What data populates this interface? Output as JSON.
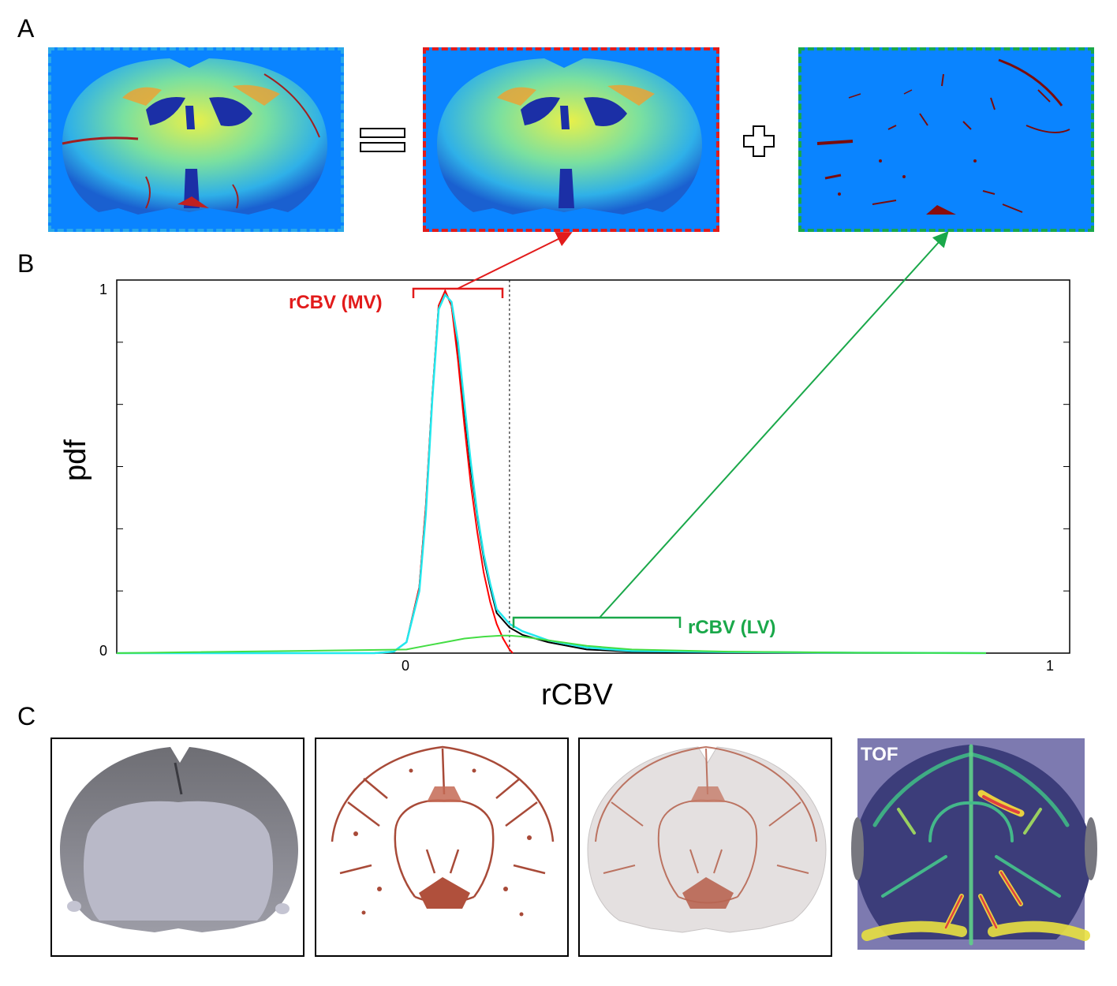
{
  "panels": {
    "a": "A",
    "b": "B",
    "c": "C"
  },
  "chart_data": {
    "type": "line",
    "xlabel": "rCBV",
    "ylabel": "pdf",
    "xlim": [
      -0.45,
      1.03
    ],
    "ylim": [
      0,
      1.02
    ],
    "x_ticks": [
      "0",
      "1"
    ],
    "y_ticks": [
      "0",
      "1"
    ],
    "threshold_x": 0.16,
    "annotations": {
      "mv": "rCBV (MV)",
      "lv": "rCBV (LV)"
    },
    "series": [
      {
        "color": "#000000",
        "x": [
          -0.05,
          -0.02,
          0.0,
          0.02,
          0.03,
          0.04,
          0.05,
          0.06,
          0.07,
          0.08,
          0.09,
          0.1,
          0.11,
          0.12,
          0.13,
          0.14,
          0.16,
          0.18,
          0.22,
          0.28,
          0.35,
          0.5,
          0.7,
          0.9
        ],
        "y": [
          0,
          0.004,
          0.03,
          0.18,
          0.4,
          0.7,
          0.95,
          0.99,
          0.95,
          0.82,
          0.66,
          0.5,
          0.37,
          0.26,
          0.18,
          0.11,
          0.07,
          0.05,
          0.03,
          0.01,
          0.004,
          0.002,
          0.001,
          0
        ]
      },
      {
        "color": "#ff0000",
        "x": [
          -0.05,
          -0.02,
          0.0,
          0.02,
          0.03,
          0.04,
          0.05,
          0.06,
          0.07,
          0.08,
          0.09,
          0.1,
          0.11,
          0.12,
          0.13,
          0.14,
          0.15,
          0.16,
          0.165
        ],
        "y": [
          0,
          0.004,
          0.03,
          0.18,
          0.4,
          0.7,
          0.95,
          0.99,
          0.95,
          0.8,
          0.62,
          0.46,
          0.33,
          0.22,
          0.14,
          0.08,
          0.04,
          0.01,
          0
        ]
      },
      {
        "color": "#22e8ee",
        "x": [
          -0.05,
          -0.02,
          0.0,
          0.02,
          0.03,
          0.04,
          0.05,
          0.06,
          0.07,
          0.08,
          0.09,
          0.1,
          0.11,
          0.12,
          0.13,
          0.14,
          0.16,
          0.18,
          0.22,
          0.28,
          0.35,
          0.5,
          0.7,
          0.9
        ],
        "y": [
          0,
          0.004,
          0.03,
          0.17,
          0.38,
          0.69,
          0.94,
          0.98,
          0.96,
          0.85,
          0.68,
          0.52,
          0.38,
          0.27,
          0.19,
          0.12,
          0.08,
          0.06,
          0.035,
          0.015,
          0.006,
          0.003,
          0.001,
          0
        ]
      },
      {
        "color": "#44dd44",
        "x": [
          0.0,
          0.03,
          0.06,
          0.09,
          0.12,
          0.15,
          0.16,
          0.18,
          0.22,
          0.28,
          0.35,
          0.5,
          0.7,
          0.9
        ],
        "y": [
          0.01,
          0.02,
          0.03,
          0.04,
          0.045,
          0.048,
          0.048,
          0.045,
          0.035,
          0.02,
          0.01,
          0.004,
          0.001,
          0
        ]
      }
    ]
  },
  "panel_c": {
    "tof_label": "TOF"
  },
  "colors": {
    "map_background": "#0a84ff",
    "mv_red": "#e21b1b",
    "lv_green": "#1aa84a",
    "cyan": "#22e8ee",
    "vessel_brown": "#b5543f",
    "tof_background": "#7d7ab0"
  }
}
